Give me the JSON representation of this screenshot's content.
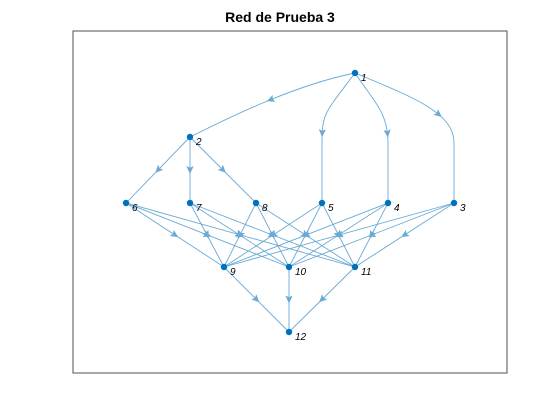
{
  "title": "Red de Prueba 3",
  "colors": {
    "edge": "#6aaad4",
    "node": "#0072bd",
    "axes_box": "#262626",
    "background": "#ffffff"
  },
  "graph": {
    "directed": true,
    "nodes": [
      {
        "id": "1",
        "label": "1"
      },
      {
        "id": "2",
        "label": "2"
      },
      {
        "id": "3",
        "label": "3"
      },
      {
        "id": "4",
        "label": "4"
      },
      {
        "id": "5",
        "label": "5"
      },
      {
        "id": "6",
        "label": "6"
      },
      {
        "id": "7",
        "label": "7"
      },
      {
        "id": "8",
        "label": "8"
      },
      {
        "id": "9",
        "label": "9"
      },
      {
        "id": "10",
        "label": "10"
      },
      {
        "id": "11",
        "label": "11"
      },
      {
        "id": "12",
        "label": "12"
      }
    ],
    "edges": [
      [
        "1",
        "2"
      ],
      [
        "1",
        "5"
      ],
      [
        "1",
        "4"
      ],
      [
        "1",
        "3"
      ],
      [
        "2",
        "6"
      ],
      [
        "2",
        "7"
      ],
      [
        "2",
        "8"
      ],
      [
        "6",
        "9"
      ],
      [
        "6",
        "10"
      ],
      [
        "6",
        "11"
      ],
      [
        "7",
        "9"
      ],
      [
        "7",
        "10"
      ],
      [
        "7",
        "11"
      ],
      [
        "8",
        "9"
      ],
      [
        "8",
        "10"
      ],
      [
        "8",
        "11"
      ],
      [
        "5",
        "9"
      ],
      [
        "5",
        "10"
      ],
      [
        "5",
        "11"
      ],
      [
        "4",
        "9"
      ],
      [
        "4",
        "10"
      ],
      [
        "4",
        "11"
      ],
      [
        "3",
        "9"
      ],
      [
        "3",
        "10"
      ],
      [
        "3",
        "11"
      ],
      [
        "9",
        "12"
      ],
      [
        "10",
        "12"
      ],
      [
        "11",
        "12"
      ]
    ]
  }
}
